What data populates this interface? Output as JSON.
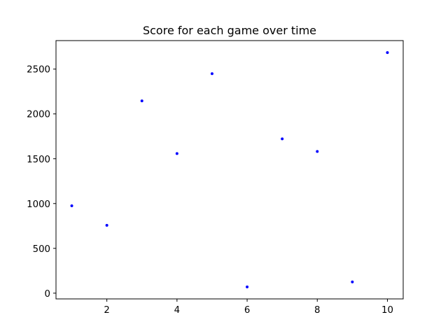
{
  "chart_data": {
    "type": "scatter",
    "title": "Score for each game over time",
    "xlabel": "",
    "ylabel": "",
    "x": [
      1,
      2,
      3,
      4,
      5,
      6,
      7,
      8,
      9,
      10
    ],
    "y": [
      975,
      757,
      2145,
      1558,
      2449,
      70,
      1722,
      1581,
      125,
      2684
    ],
    "xlim": [
      0.55,
      10.45
    ],
    "ylim": [
      -64,
      2818
    ],
    "xticks": [
      2,
      4,
      6,
      8,
      10
    ],
    "xtick_labels": [
      "2",
      "4",
      "6",
      "8",
      "10"
    ],
    "yticks": [
      0,
      500,
      1000,
      1500,
      2000,
      2500
    ],
    "ytick_labels": [
      "0",
      "500",
      "1000",
      "1500",
      "2000",
      "2500"
    ],
    "grid": false,
    "legend": "none",
    "marker_color": "#0000ff",
    "axes_color": "#000000"
  }
}
